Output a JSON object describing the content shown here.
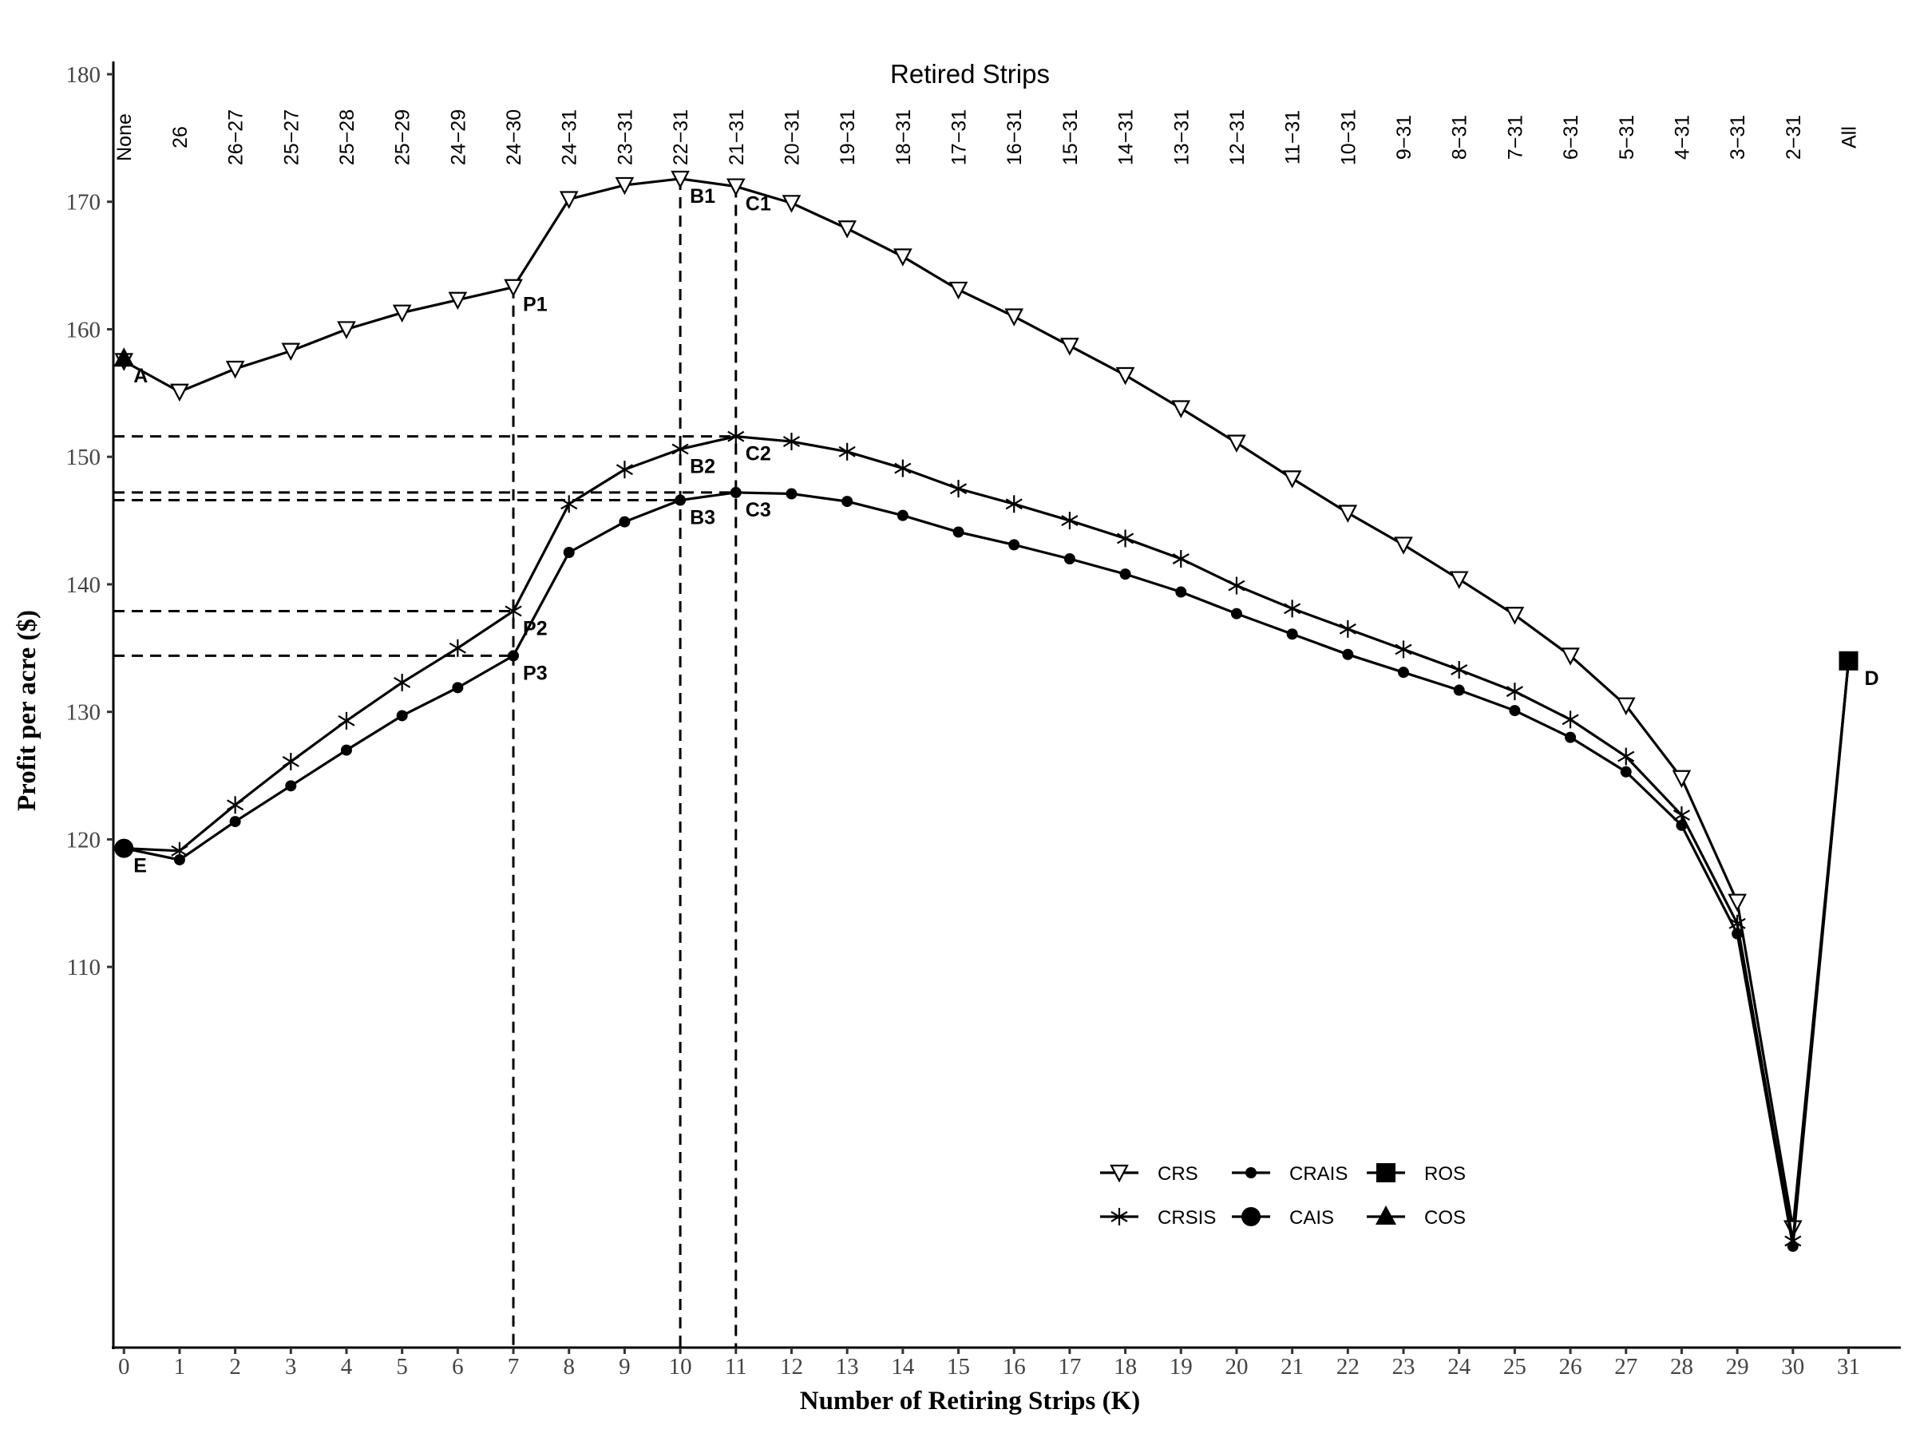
{
  "chart_data": {
    "type": "line",
    "title": "Retired Strips",
    "xlabel": "Number of Retiring Strips (K)",
    "ylabel": "Profit per acre ($)",
    "xlim": [
      -0.19,
      31.94
    ],
    "ylim": [
      80.15,
      181.0
    ],
    "x_ticks": [
      0,
      1,
      2,
      3,
      4,
      5,
      6,
      7,
      8,
      9,
      10,
      11,
      12,
      13,
      14,
      15,
      16,
      17,
      18,
      19,
      20,
      21,
      22,
      23,
      24,
      25,
      26,
      27,
      28,
      29,
      30,
      31
    ],
    "y_ticks": [
      110,
      120,
      130,
      140,
      150,
      160,
      170,
      180
    ],
    "grid": false,
    "top_labels": [
      "None",
      "26",
      "26−27",
      "25−27",
      "25−28",
      "25−29",
      "24−29",
      "24−30",
      "24−31",
      "23−31",
      "22−31",
      "21−31",
      "20−31",
      "19−31",
      "18−31",
      "17−31",
      "16−31",
      "15−31",
      "14−31",
      "13−31",
      "12−31",
      "11−31",
      "10−31",
      "9−31",
      "8−31",
      "7−31",
      "6−31",
      "5−31",
      "4−31",
      "3−31",
      "2−31",
      "All"
    ],
    "x": [
      0,
      1,
      2,
      3,
      4,
      5,
      6,
      7,
      8,
      9,
      10,
      11,
      12,
      13,
      14,
      15,
      16,
      17,
      18,
      19,
      20,
      21,
      22,
      23,
      24,
      25,
      26,
      27,
      28,
      29,
      30,
      31
    ],
    "series": [
      {
        "name": "CRS",
        "marker": "open-down-triangle",
        "values": [
          157.5,
          155.1,
          156.9,
          158.3,
          160.0,
          161.3,
          162.3,
          163.3,
          170.2,
          171.3,
          171.8,
          171.2,
          169.9,
          167.9,
          165.7,
          163.1,
          161.0,
          158.7,
          156.4,
          153.8,
          151.1,
          148.3,
          145.6,
          143.1,
          140.4,
          137.6,
          134.4,
          130.5,
          124.8,
          115.1,
          89.5,
          134.0
        ]
      },
      {
        "name": "CRSIS",
        "marker": "star",
        "values": [
          119.3,
          119.1,
          122.7,
          126.1,
          129.3,
          132.3,
          135.0,
          137.9,
          146.3,
          149.0,
          150.6,
          151.6,
          151.2,
          150.4,
          149.1,
          147.5,
          146.3,
          145.0,
          143.6,
          142.0,
          139.9,
          138.1,
          136.5,
          134.9,
          133.3,
          131.6,
          129.4,
          126.5,
          121.9,
          113.4,
          88.5,
          134.0
        ]
      },
      {
        "name": "CRAIS",
        "marker": "small-dot",
        "values": [
          119.3,
          118.4,
          121.4,
          124.2,
          127.0,
          129.7,
          131.9,
          134.4,
          142.5,
          144.9,
          146.6,
          147.2,
          147.1,
          146.5,
          145.4,
          144.1,
          143.1,
          142.0,
          140.8,
          139.4,
          137.7,
          136.1,
          134.5,
          133.1,
          131.7,
          130.1,
          128.0,
          125.3,
          121.1,
          112.6,
          88.1,
          134.0
        ]
      }
    ],
    "single_points": [
      {
        "name": "ROS",
        "marker": "square",
        "x": 31,
        "y": 134.0
      },
      {
        "name": "CAIS",
        "marker": "big-dot",
        "x": 0,
        "y": 119.3
      },
      {
        "name": "COS",
        "marker": "triangle",
        "x": 0,
        "y": 157.7
      }
    ],
    "annotations": [
      {
        "text": "A",
        "x": 0,
        "y": 157.7
      },
      {
        "text": "E",
        "x": 0,
        "y": 119.3
      },
      {
        "text": "D",
        "x": 31,
        "y": 134.0
      },
      {
        "text": "P1",
        "x": 7,
        "y": 163.3
      },
      {
        "text": "P2",
        "x": 7,
        "y": 137.9
      },
      {
        "text": "P3",
        "x": 7,
        "y": 134.4
      },
      {
        "text": "B1",
        "x": 10,
        "y": 171.8
      },
      {
        "text": "B2",
        "x": 10,
        "y": 150.6
      },
      {
        "text": "B3",
        "x": 10,
        "y": 146.6
      },
      {
        "text": "C1",
        "x": 11,
        "y": 171.2
      },
      {
        "text": "C2",
        "x": 11,
        "y": 151.6
      },
      {
        "text": "C3",
        "x": 11,
        "y": 147.2
      }
    ],
    "reference_lines": [
      {
        "orientation": "vertical",
        "x": 7,
        "y_top": 163.3
      },
      {
        "orientation": "vertical",
        "x": 10,
        "y_top": 171.8
      },
      {
        "orientation": "vertical",
        "x": 11,
        "y_top": 171.2
      },
      {
        "orientation": "horizontal",
        "y": 151.6,
        "x_end": 11
      },
      {
        "orientation": "horizontal",
        "y": 147.2,
        "x_end": 11
      },
      {
        "orientation": "horizontal",
        "y": 146.6,
        "x_end": 10
      },
      {
        "orientation": "horizontal",
        "y": 137.9,
        "x_end": 7
      },
      {
        "orientation": "horizontal",
        "y": 134.4,
        "x_end": 7
      }
    ],
    "legend": {
      "placement": "bottom-right",
      "entries": [
        {
          "label": "CRS",
          "marker": "open-down-triangle"
        },
        {
          "label": "CRSIS",
          "marker": "star"
        },
        {
          "label": "CRAIS",
          "marker": "small-dot"
        },
        {
          "label": "CAIS",
          "marker": "big-dot"
        },
        {
          "label": "ROS",
          "marker": "square"
        },
        {
          "label": "COS",
          "marker": "triangle"
        }
      ]
    }
  }
}
